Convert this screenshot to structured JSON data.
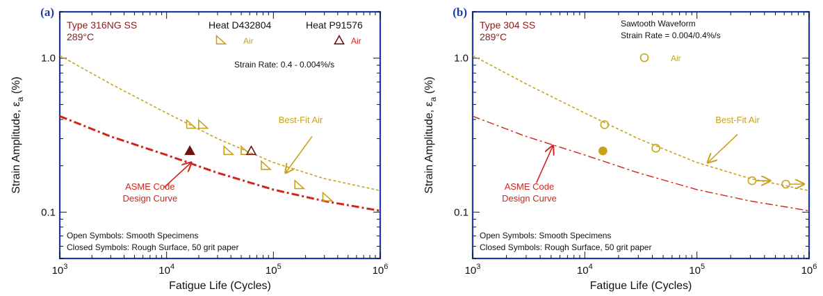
{
  "colors": {
    "frame": "#1a3aa8",
    "air": "#c8a21e",
    "asme": "#d0251b",
    "title": "#8b1a1a",
    "rough": "#6b1414",
    "panel_label": "#1a3aa8"
  },
  "chart_data": [
    {
      "type": "scatter",
      "panel_label": "(a)",
      "title": "Type 316NG SS",
      "subtitle": "289°C",
      "xlabel": "Fatigue Life (Cycles)",
      "ylabel": "Strain Amplitude, ε",
      "ylabel_sub": "a",
      "ylabel_unit": " (%)",
      "x_scale": "log",
      "y_scale": "log",
      "xlim": [
        1000,
        1000000
      ],
      "ylim": [
        0.05,
        2
      ],
      "x_ticks": [
        {
          "v": 1000,
          "exp": "3"
        },
        {
          "v": 10000,
          "exp": "4"
        },
        {
          "v": 100000,
          "exp": "5"
        },
        {
          "v": 1000000,
          "exp": "6"
        }
      ],
      "y_ticks": [
        {
          "v": 0.1,
          "label": "0.1"
        },
        {
          "v": 1,
          "label": "1.0"
        }
      ],
      "legend": [
        {
          "heat": "Heat D432804",
          "label": "Air",
          "marker": "triangle-open-right",
          "color": "#c8a21e"
        },
        {
          "heat": "Heat P91576",
          "label": "Air",
          "marker": "triangle-open",
          "color": "#6b1414"
        }
      ],
      "strain_rate": "Strain Rate:  0.4 - 0.004%/s",
      "notes": [
        "Open Symbols: Smooth Specimens",
        "Closed Symbols: Rough Surface, 50 grit paper"
      ],
      "curves": [
        {
          "name": "Best-Fit Air",
          "style": "dashed",
          "color": "#c8a21e",
          "x": [
            1000,
            3000,
            10000,
            30000,
            100000,
            300000,
            1000000
          ],
          "y": [
            1.04,
            0.68,
            0.44,
            0.3,
            0.21,
            0.165,
            0.138
          ]
        },
        {
          "name": "ASME Code Design Curve",
          "style": "dashdot",
          "color": "#d0251b",
          "x": [
            1000,
            3000,
            10000,
            30000,
            100000,
            300000,
            1000000
          ],
          "y": [
            0.42,
            0.31,
            0.235,
            0.18,
            0.14,
            0.118,
            0.102
          ]
        }
      ],
      "points": [
        {
          "x": 17000,
          "y": 0.37,
          "marker": "triangle-open-right",
          "color": "#c8a21e"
        },
        {
          "x": 22000,
          "y": 0.37,
          "marker": "triangle-open-right",
          "color": "#c8a21e"
        },
        {
          "x": 38000,
          "y": 0.25,
          "marker": "triangle-open-right",
          "color": "#c8a21e"
        },
        {
          "x": 55000,
          "y": 0.25,
          "marker": "triangle-open-right",
          "color": "#c8a21e"
        },
        {
          "x": 85000,
          "y": 0.2,
          "marker": "triangle-open-right",
          "color": "#c8a21e"
        },
        {
          "x": 175000,
          "y": 0.15,
          "marker": "triangle-open-right",
          "color": "#c8a21e"
        },
        {
          "x": 320000,
          "y": 0.125,
          "marker": "triangle-open-right",
          "color": "#c8a21e"
        },
        {
          "x": 62000,
          "y": 0.25,
          "marker": "triangle-open",
          "color": "#6b1414"
        },
        {
          "x": 16500,
          "y": 0.25,
          "marker": "triangle-filled",
          "color": "#6b1414"
        }
      ],
      "annotations": [
        {
          "id": "best-fit",
          "text": [
            "Best-Fit Air"
          ],
          "color": "#c8a21e",
          "anchor": "middle",
          "tx": 180000,
          "ty": 0.38,
          "ax0": 230000,
          "ay0": 0.31,
          "ax1": 130000,
          "ay1": 0.18
        },
        {
          "id": "asme",
          "text": [
            "ASME Code",
            "Design Curve"
          ],
          "color": "#d0251b",
          "anchor": "middle",
          "tx": 7000,
          "ty": 0.14,
          "ax0": 9500,
          "ay0": 0.145,
          "ax1": 17000,
          "ay1": 0.21
        }
      ]
    },
    {
      "type": "scatter",
      "panel_label": "(b)",
      "title": "Type 304 SS",
      "subtitle": "289°C",
      "xlabel": "Fatigue Life (Cycles)",
      "ylabel": "Strain Amplitude, ε",
      "ylabel_sub": "a",
      "ylabel_unit": " (%)",
      "x_scale": "log",
      "y_scale": "log",
      "xlim": [
        1000,
        1000000
      ],
      "ylim": [
        0.05,
        2
      ],
      "x_ticks": [
        {
          "v": 1000,
          "exp": "3"
        },
        {
          "v": 10000,
          "exp": "4"
        },
        {
          "v": 100000,
          "exp": "5"
        },
        {
          "v": 1000000,
          "exp": "6"
        }
      ],
      "y_ticks": [
        {
          "v": 0.1,
          "label": "0.1"
        },
        {
          "v": 1,
          "label": "1.0"
        }
      ],
      "legend": [
        {
          "label": "Air",
          "marker": "circle-open",
          "color": "#c8a21e"
        }
      ],
      "header_lines": [
        "Sawtooth Waveform",
        "Strain Rate = 0.004/0.4%/s"
      ],
      "notes": [
        "Open Symbols: Smooth Specimens",
        "Closed Symbols: Rough Surface, 50 grit paper"
      ],
      "curves": [
        {
          "name": "Best-Fit Air",
          "style": "dashed",
          "color": "#c8a21e",
          "x": [
            1000,
            3000,
            10000,
            30000,
            100000,
            300000,
            1000000
          ],
          "y": [
            1.04,
            0.68,
            0.44,
            0.3,
            0.21,
            0.165,
            0.138
          ]
        },
        {
          "name": "ASME Code Design Curve",
          "style": "dashdot",
          "color": "#d0251b",
          "x": [
            1000,
            3000,
            10000,
            30000,
            100000,
            300000,
            1000000
          ],
          "y": [
            0.42,
            0.31,
            0.235,
            0.18,
            0.14,
            0.118,
            0.102
          ]
        }
      ],
      "points": [
        {
          "x": 15000,
          "y": 0.37,
          "marker": "circle-open",
          "color": "#c8a21e"
        },
        {
          "x": 43000,
          "y": 0.26,
          "marker": "circle-open",
          "color": "#c8a21e"
        },
        {
          "x": 310000,
          "y": 0.16,
          "marker": "circle-open",
          "color": "#c8a21e",
          "runout": true
        },
        {
          "x": 620000,
          "y": 0.152,
          "marker": "circle-open",
          "color": "#c8a21e",
          "runout": true
        },
        {
          "x": 14500,
          "y": 0.25,
          "marker": "circle-filled",
          "color": "#c8a21e"
        }
      ],
      "annotations": [
        {
          "id": "best-fit",
          "text": [
            "Best-Fit Air"
          ],
          "color": "#c8a21e",
          "anchor": "middle",
          "tx": 230000,
          "ty": 0.38,
          "ax0": 230000,
          "ay0": 0.32,
          "ax1": 125000,
          "ay1": 0.21
        },
        {
          "id": "asme",
          "text": [
            "ASME Code",
            "Design Curve"
          ],
          "color": "#d0251b",
          "anchor": "middle",
          "tx": 3200,
          "ty": 0.14,
          "ax0": 3700,
          "ay0": 0.155,
          "ax1": 5200,
          "ay1": 0.27
        }
      ]
    }
  ]
}
